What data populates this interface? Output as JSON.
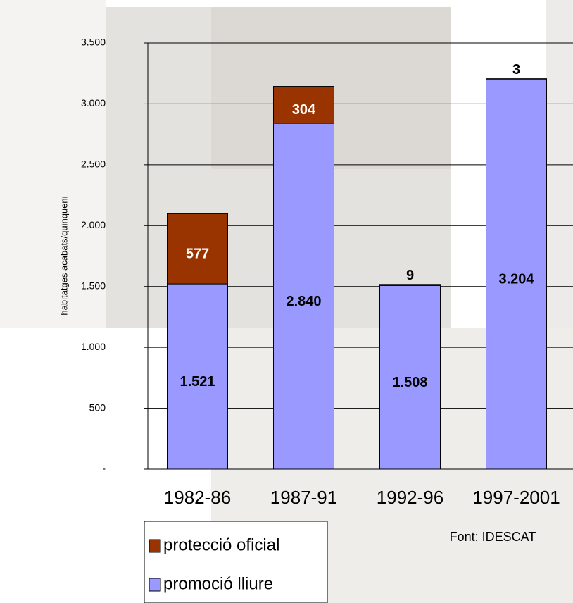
{
  "chart_data": {
    "type": "stacked_bar",
    "y_label": "habitatges acabats/quinqueni",
    "source": "Font: IDESCAT",
    "categories": [
      "1982-86",
      "1987-91",
      "1992-96",
      "1997-2001"
    ],
    "series": [
      {
        "name": "promoció lliure",
        "color": "#9999ff",
        "values": [
          1521,
          2840,
          1508,
          3204
        ],
        "value_labels": [
          "1.521",
          "2.840",
          "1.508",
          "3.204"
        ]
      },
      {
        "name": "protecció oficial",
        "color": "#993300",
        "values": [
          577,
          304,
          9,
          3
        ]
      }
    ],
    "ylim": [
      0,
      3500
    ],
    "yticks": [
      {
        "value": 0,
        "label": "-"
      },
      500,
      {
        "value": 1000,
        "label": "1.000"
      },
      {
        "value": 1500,
        "label": "1.500"
      },
      {
        "value": 2000,
        "label": "2.000"
      },
      {
        "value": 2500,
        "label": "2.500"
      },
      {
        "value": 3000,
        "label": "3.000"
      },
      {
        "value": 3500,
        "label": "3.500"
      }
    ],
    "grid": true,
    "legend": "bottom-left"
  }
}
